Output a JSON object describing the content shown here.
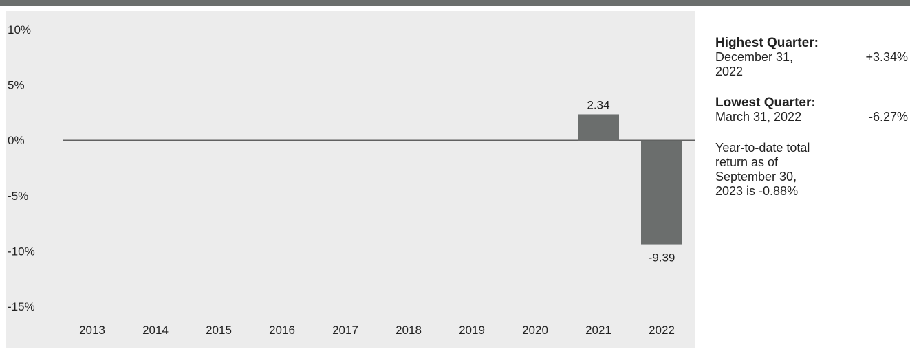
{
  "chart_data": {
    "type": "bar",
    "categories": [
      "2013",
      "2014",
      "2015",
      "2016",
      "2017",
      "2018",
      "2019",
      "2020",
      "2021",
      "2022"
    ],
    "values": [
      null,
      null,
      null,
      null,
      null,
      null,
      null,
      null,
      2.34,
      -9.39
    ],
    "value_labels": [
      "",
      "",
      "",
      "",
      "",
      "",
      "",
      "",
      "2.34",
      "-9.39"
    ],
    "ylim": [
      -15,
      10
    ],
    "yticks": [
      10,
      5,
      0,
      -5,
      -10,
      -15
    ],
    "ytick_labels": [
      "10%",
      "5%",
      "0%",
      "-5%",
      "-10%",
      "-15%"
    ],
    "grid": false,
    "colors": {
      "bar": "#6b6e6d",
      "panel": "#ececec",
      "axis": "#333333"
    }
  },
  "sidebar": {
    "highest": {
      "label": "Highest Quarter:",
      "date": "December 31, 2022",
      "value": "+3.34%"
    },
    "lowest": {
      "label": "Lowest Quarter:",
      "date": "March 31, 2022",
      "value": "-6.27%"
    },
    "ytd_note": "Year-to-date total return as of September 30, 2023 is -0.88%"
  }
}
